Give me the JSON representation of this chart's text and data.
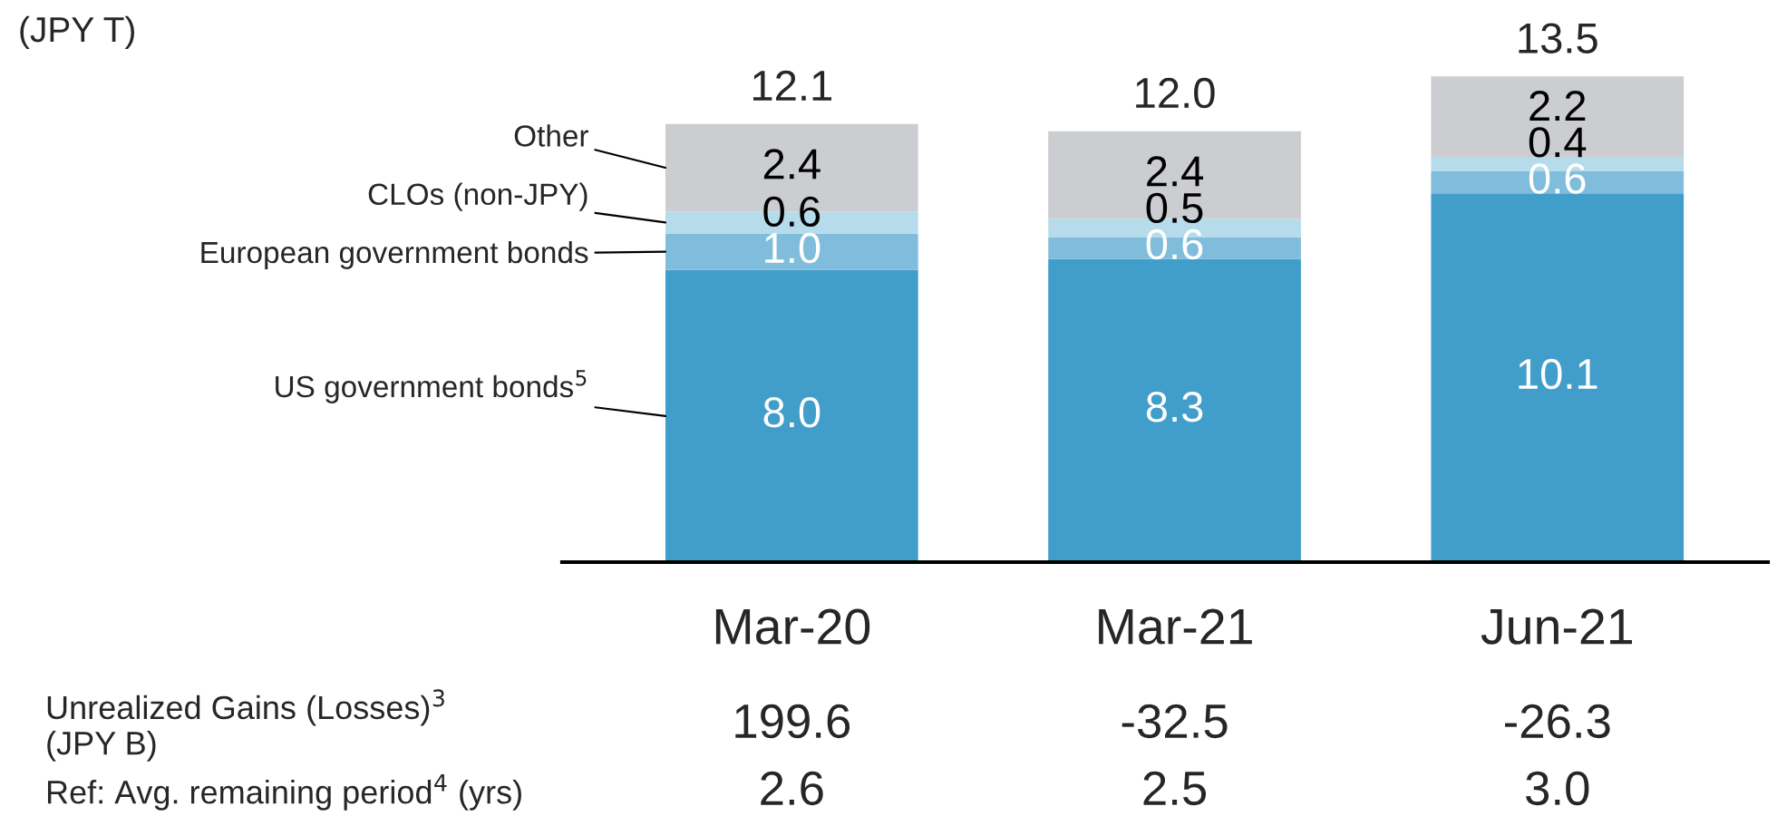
{
  "chart_data": {
    "type": "bar",
    "stacked": true,
    "categories": [
      "Mar-20",
      "Mar-21",
      "Jun-21"
    ],
    "series": [
      {
        "name": "US government bonds$^{5}$",
        "color": "#419dc9",
        "values": [
          8.0,
          8.3,
          10.1
        ],
        "value_labels": [
          "8.0",
          "8.3",
          "10.1"
        ]
      },
      {
        "name": "European government bonds",
        "color": "#80bddc",
        "values": [
          1.0,
          0.6,
          0.6
        ],
        "value_labels": [
          "1.0",
          "0.6",
          "0.6"
        ]
      },
      {
        "name": "CLOs (non-JPY)",
        "color": "#b6dcec",
        "values": [
          0.6,
          0.5,
          0.4
        ],
        "value_labels": [
          "0.6",
          "0.5",
          "0.4"
        ]
      },
      {
        "name": "Other",
        "color": "#cbcdd0",
        "values": [
          2.4,
          2.4,
          2.2
        ],
        "value_labels": [
          "2.4",
          "2.4",
          "2.2"
        ]
      }
    ],
    "totals": [
      "12.1",
      "12.0",
      "13.5"
    ],
    "annotations": [
      "(JPY T)",
      "Unrealized Gains (Losses)$^{3}$\n(JPY B)",
      "199.6",
      "-32.5",
      "-26.3",
      "Ref: Avg. remaining period$^{4}$ (yrs)",
      "2.6",
      "2.5",
      "3.0"
    ]
  }
}
